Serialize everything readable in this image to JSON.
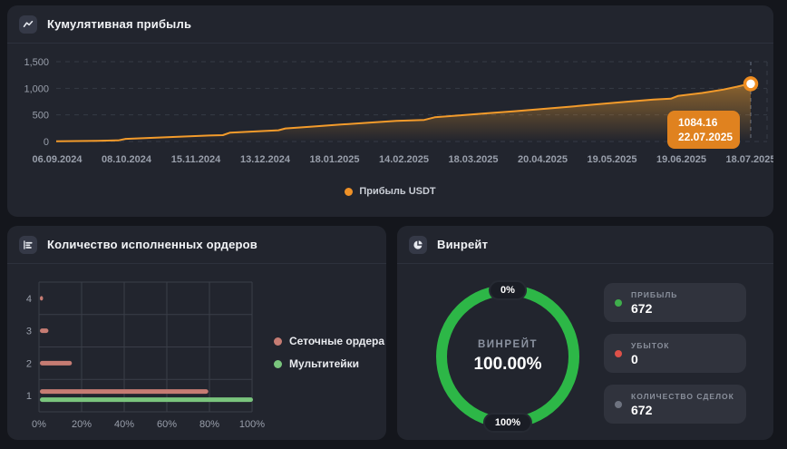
{
  "colors": {
    "accent_orange": "#ef9127",
    "tooltip_bg": "#e0821f",
    "donut_green": "#2db747",
    "grid_bar": "#c67c73",
    "multi_bar": "#7ac57d",
    "profit_dot": "#3fae4c",
    "loss_dot": "#dd5149",
    "neutral_dot": "#6e7380"
  },
  "cumulative_panel": {
    "title": "Кумулятивная прибыль",
    "legend_label": "Прибыль USDT"
  },
  "orders_panel": {
    "title": "Количество исполненных ордеров",
    "legend": [
      {
        "label": "Сеточные ордера",
        "color": "#c67c73"
      },
      {
        "label": "Мультитейки",
        "color": "#7ac57d"
      }
    ]
  },
  "winrate_panel": {
    "title": "Винрейт",
    "center_label": "ВИНРЕЙТ",
    "center_value": "100.00%",
    "top_badge": "0%",
    "bottom_badge": "100%",
    "stats": [
      {
        "label": "ПРИБЫЛЬ",
        "value": "672",
        "dot_color": "#3fae4c"
      },
      {
        "label": "УБЫТОК",
        "value": "0",
        "dot_color": "#dd5149"
      },
      {
        "label": "КОЛИЧЕСТВО СДЕЛОК",
        "value": "672",
        "dot_color": "#6e7380"
      }
    ]
  },
  "chart_data": [
    {
      "type": "area",
      "title": "Кумулятивная прибыль",
      "series_name": "Прибыль USDT",
      "line_color": "#f39b2b",
      "grid": "dashed-horizontal",
      "legend_position": "bottom-center",
      "x_ticks": [
        "06.09.2024",
        "08.10.2024",
        "15.11.2024",
        "13.12.2024",
        "18.01.2025",
        "14.02.2025",
        "18.03.2025",
        "20.04.2025",
        "19.05.2025",
        "19.06.2025",
        "18.07.2025"
      ],
      "y_tick_labels": [
        "0",
        "500",
        "1,000",
        "1,500"
      ],
      "y_tick_values": [
        0,
        500,
        1000,
        1500
      ],
      "ylim": [
        0,
        1500
      ],
      "points": [
        [
          0,
          4
        ],
        [
          0.03,
          8
        ],
        [
          0.06,
          14
        ],
        [
          0.09,
          22
        ],
        [
          0.1,
          50
        ],
        [
          0.14,
          70
        ],
        [
          0.18,
          92
        ],
        [
          0.22,
          112
        ],
        [
          0.24,
          120
        ],
        [
          0.25,
          165
        ],
        [
          0.29,
          192
        ],
        [
          0.32,
          212
        ],
        [
          0.33,
          246
        ],
        [
          0.37,
          282
        ],
        [
          0.41,
          318
        ],
        [
          0.45,
          352
        ],
        [
          0.49,
          388
        ],
        [
          0.53,
          405
        ],
        [
          0.545,
          455
        ],
        [
          0.58,
          490
        ],
        [
          0.62,
          530
        ],
        [
          0.66,
          570
        ],
        [
          0.7,
          612
        ],
        [
          0.74,
          655
        ],
        [
          0.78,
          700
        ],
        [
          0.82,
          745
        ],
        [
          0.86,
          790
        ],
        [
          0.885,
          805
        ],
        [
          0.895,
          855
        ],
        [
          0.93,
          912
        ],
        [
          0.96,
          975
        ],
        [
          0.98,
          1030
        ],
        [
          0.99,
          1060
        ],
        [
          1,
          1084.16
        ]
      ],
      "highlight": {
        "value": "1084.16",
        "date": "22.07.2025"
      }
    },
    {
      "type": "bar-horizontal",
      "title": "Количество исполненных ордеров",
      "categories": [
        "4",
        "3",
        "2",
        "1"
      ],
      "series": [
        {
          "name": "Сеточные ордера",
          "color": "#c67c73",
          "values": [
            1.5,
            4,
            15,
            79
          ]
        },
        {
          "name": "Мультитейки",
          "color": "#7ac57d",
          "values": [
            0,
            0,
            0,
            100
          ]
        }
      ],
      "x_ticks": [
        "0%",
        "20%",
        "40%",
        "60%",
        "80%",
        "100%"
      ],
      "xlim": [
        0,
        100
      ]
    },
    {
      "type": "donut",
      "title": "Винрейт",
      "value_pct": 100.0,
      "center_label": "ВИНРЕЙТ",
      "center_value": "100.00%",
      "min_label": "0%",
      "max_label": "100%",
      "ring_color": "#2db747",
      "stats": [
        {
          "label": "ПРИБЫЛЬ",
          "value": 672
        },
        {
          "label": "УБЫТОК",
          "value": 0
        },
        {
          "label": "КОЛИЧЕСТВО СДЕЛОК",
          "value": 672
        }
      ]
    }
  ]
}
